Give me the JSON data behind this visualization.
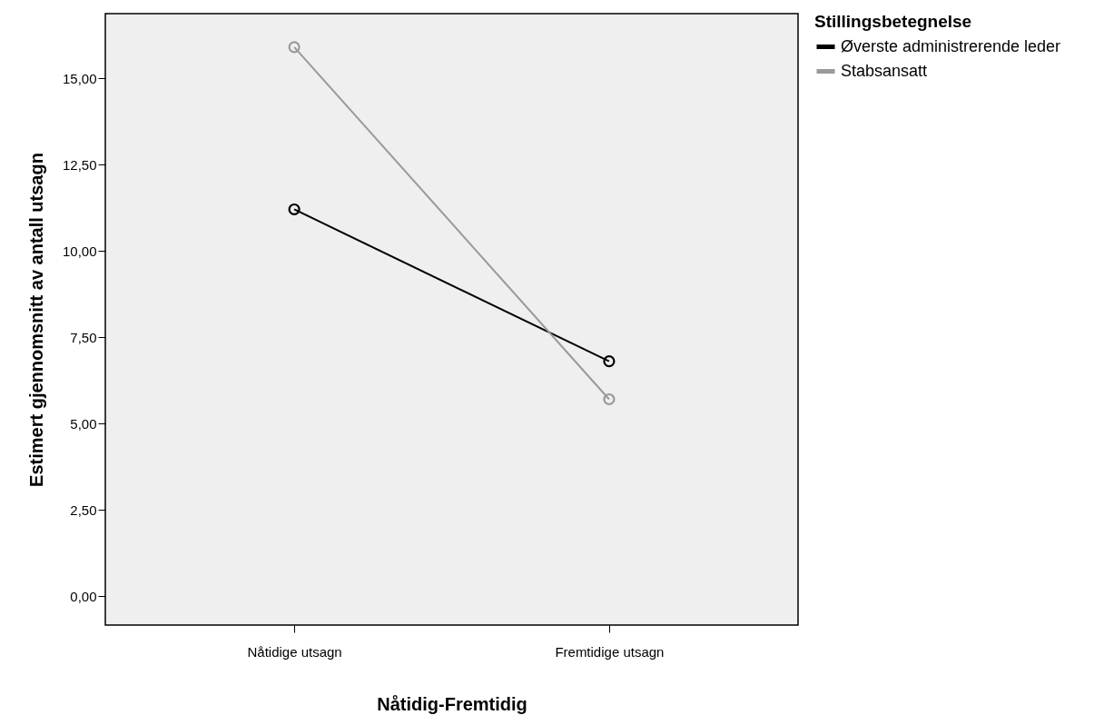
{
  "chart_data": {
    "type": "line",
    "xlabel": "Nåtidig-Fremtidig",
    "ylabel": "Estimert gjennomsnitt av antall utsagn",
    "legend_title": "Stillingsbetegnelse",
    "categories": [
      "Nåtidige utsagn",
      "Fremtidige utsagn"
    ],
    "series": [
      {
        "name": "Øverste administrerende leder",
        "color": "#000000",
        "values": [
          11.2,
          6.8
        ]
      },
      {
        "name": "Stabsansatt",
        "color": "#999999",
        "values": [
          15.9,
          5.7
        ]
      }
    ],
    "ylim": [
      -0.84,
      16.87
    ],
    "yticks": [
      {
        "value": 0,
        "label": "0,00"
      },
      {
        "value": 2.5,
        "label": "2,50"
      },
      {
        "value": 5,
        "label": "5,00"
      },
      {
        "value": 7.5,
        "label": "7,50"
      },
      {
        "value": 10,
        "label": "10,00"
      },
      {
        "value": 12.5,
        "label": "12,50"
      },
      {
        "value": 15,
        "label": "15,00"
      }
    ],
    "grid": false,
    "legend": "top right",
    "marker": "circle",
    "line_style": "solid"
  }
}
